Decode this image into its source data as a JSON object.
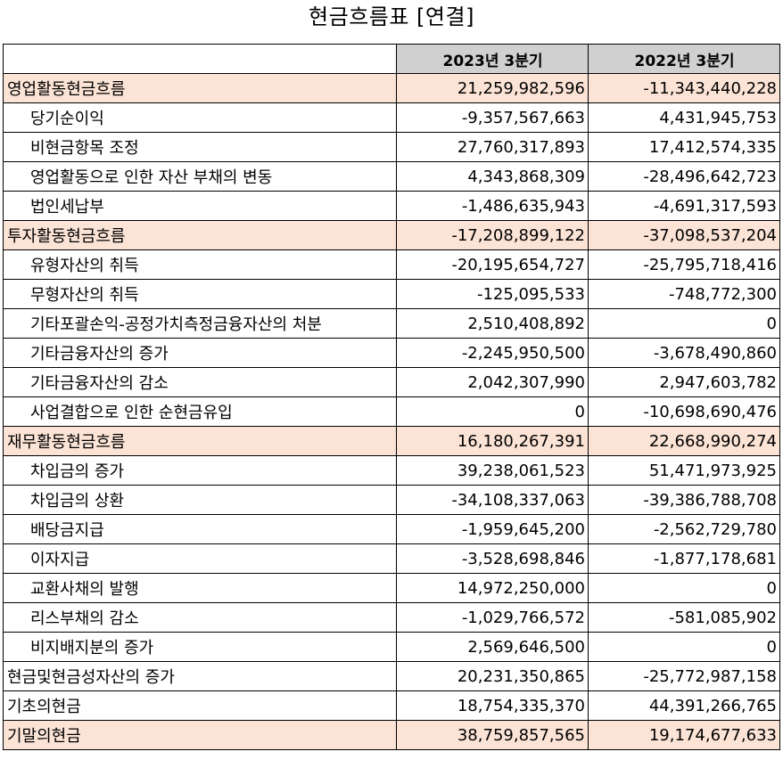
{
  "title": "현금흐름표 [연결]",
  "columns": [
    "2023년 3분기",
    "2022년 3분기"
  ],
  "rows": [
    {
      "label": "영업활동현금흐름",
      "v2023": "21,259,982,596",
      "v2022": "-11,343,440,228",
      "level": 0,
      "highlight": true
    },
    {
      "label": "당기순이익",
      "v2023": "-9,357,567,663",
      "v2022": "4,431,945,753",
      "level": 1,
      "highlight": false
    },
    {
      "label": "비현금항목 조정",
      "v2023": "27,760,317,893",
      "v2022": "17,412,574,335",
      "level": 1,
      "highlight": false
    },
    {
      "label": "영업활동으로 인한 자산 부채의 변동",
      "v2023": "4,343,868,309",
      "v2022": "-28,496,642,723",
      "level": 1,
      "highlight": false
    },
    {
      "label": "법인세납부",
      "v2023": "-1,486,635,943",
      "v2022": "-4,691,317,593",
      "level": 1,
      "highlight": false
    },
    {
      "label": "투자활동현금흐름",
      "v2023": "-17,208,899,122",
      "v2022": "-37,098,537,204",
      "level": 0,
      "highlight": true
    },
    {
      "label": "유형자산의 취득",
      "v2023": "-20,195,654,727",
      "v2022": "-25,795,718,416",
      "level": 1,
      "highlight": false
    },
    {
      "label": "무형자산의 취득",
      "v2023": "-125,095,533",
      "v2022": "-748,772,300",
      "level": 1,
      "highlight": false
    },
    {
      "label": "기타포괄손익-공정가치측정금융자산의 처분",
      "v2023": "2,510,408,892",
      "v2022": "0",
      "level": 1,
      "highlight": false
    },
    {
      "label": "기타금융자산의 증가",
      "v2023": "-2,245,950,500",
      "v2022": "-3,678,490,860",
      "level": 1,
      "highlight": false
    },
    {
      "label": "기타금융자산의 감소",
      "v2023": "2,042,307,990",
      "v2022": "2,947,603,782",
      "level": 1,
      "highlight": false
    },
    {
      "label": "사업결합으로 인한 순현금유입",
      "v2023": "0",
      "v2022": "-10,698,690,476",
      "level": 1,
      "highlight": false
    },
    {
      "label": "재무활동현금흐름",
      "v2023": "16,180,267,391",
      "v2022": "22,668,990,274",
      "level": 0,
      "highlight": true
    },
    {
      "label": "차입금의 증가",
      "v2023": "39,238,061,523",
      "v2022": "51,471,973,925",
      "level": 1,
      "highlight": false
    },
    {
      "label": "차입금의 상환",
      "v2023": "-34,108,337,063",
      "v2022": "-39,386,788,708",
      "level": 1,
      "highlight": false
    },
    {
      "label": "배당금지급",
      "v2023": "-1,959,645,200",
      "v2022": "-2,562,729,780",
      "level": 1,
      "highlight": false
    },
    {
      "label": "이자지급",
      "v2023": "-3,528,698,846",
      "v2022": "-1,877,178,681",
      "level": 1,
      "highlight": false
    },
    {
      "label": "교환사채의 발행",
      "v2023": "14,972,250,000",
      "v2022": "0",
      "level": 1,
      "highlight": false
    },
    {
      "label": "리스부채의 감소",
      "v2023": "-1,029,766,572",
      "v2022": "-581,085,902",
      "level": 1,
      "highlight": false
    },
    {
      "label": "비지배지분의 증가",
      "v2023": "2,569,646,500",
      "v2022": "0",
      "level": 1,
      "highlight": false
    },
    {
      "label": "현금및현금성자산의 증가",
      "v2023": "20,231,350,865",
      "v2022": "-25,772,987,158",
      "level": 0,
      "highlight": false
    },
    {
      "label": "기초의현금",
      "v2023": "18,754,335,370",
      "v2022": "44,391,266,765",
      "level": 0,
      "highlight": false
    },
    {
      "label": "기말의현금",
      "v2023": "38,759,857,565",
      "v2022": "19,174,677,633",
      "level": 0,
      "highlight": true
    }
  ]
}
